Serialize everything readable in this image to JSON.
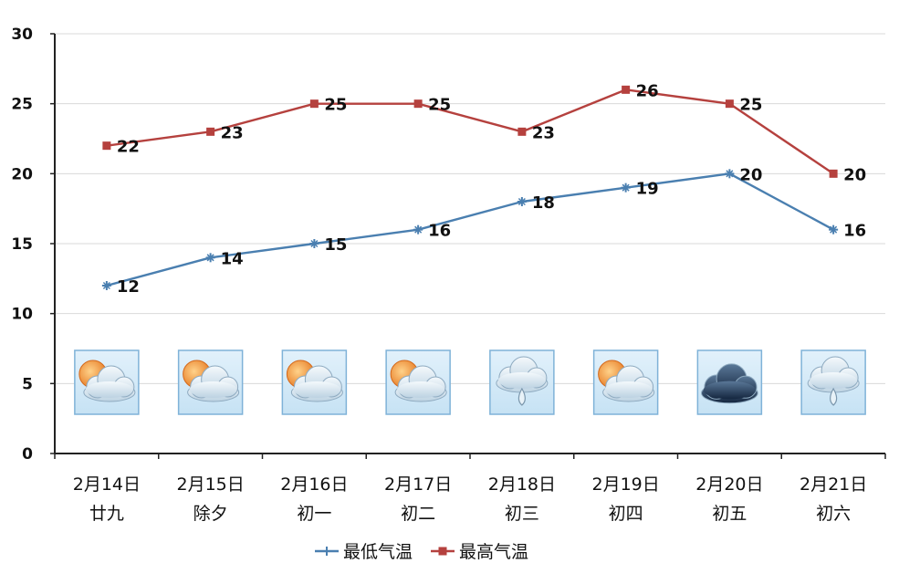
{
  "chart_data": {
    "type": "line",
    "title": "",
    "xlabel": "",
    "ylabel": "",
    "ylim": [
      0,
      30
    ],
    "yticks": [
      0,
      5,
      10,
      15,
      20,
      25,
      30
    ],
    "grid": true,
    "legend_position": "bottom",
    "categories": [
      {
        "date": "2月14日",
        "lunar": "廿九"
      },
      {
        "date": "2月15日",
        "lunar": "除夕"
      },
      {
        "date": "2月16日",
        "lunar": "初一"
      },
      {
        "date": "2月17日",
        "lunar": "初二"
      },
      {
        "date": "2月18日",
        "lunar": "初三"
      },
      {
        "date": "2月19日",
        "lunar": "初四"
      },
      {
        "date": "2月20日",
        "lunar": "初五"
      },
      {
        "date": "2月21日",
        "lunar": "初六"
      }
    ],
    "series": [
      {
        "name": "最低气温",
        "color": "#4a7fb0",
        "marker": "star",
        "values": [
          12,
          14,
          15,
          16,
          18,
          19,
          20,
          16
        ]
      },
      {
        "name": "最高气温",
        "color": "#b5413e",
        "marker": "square",
        "values": [
          22,
          23,
          25,
          25,
          23,
          26,
          25,
          20
        ]
      }
    ],
    "weather_icons": [
      "partly-cloudy-icon",
      "partly-cloudy-icon",
      "partly-cloudy-icon",
      "partly-cloudy-icon",
      "cloud-rain-icon",
      "partly-cloudy-icon",
      "dark-cloud-icon",
      "cloud-rain-icon"
    ]
  }
}
